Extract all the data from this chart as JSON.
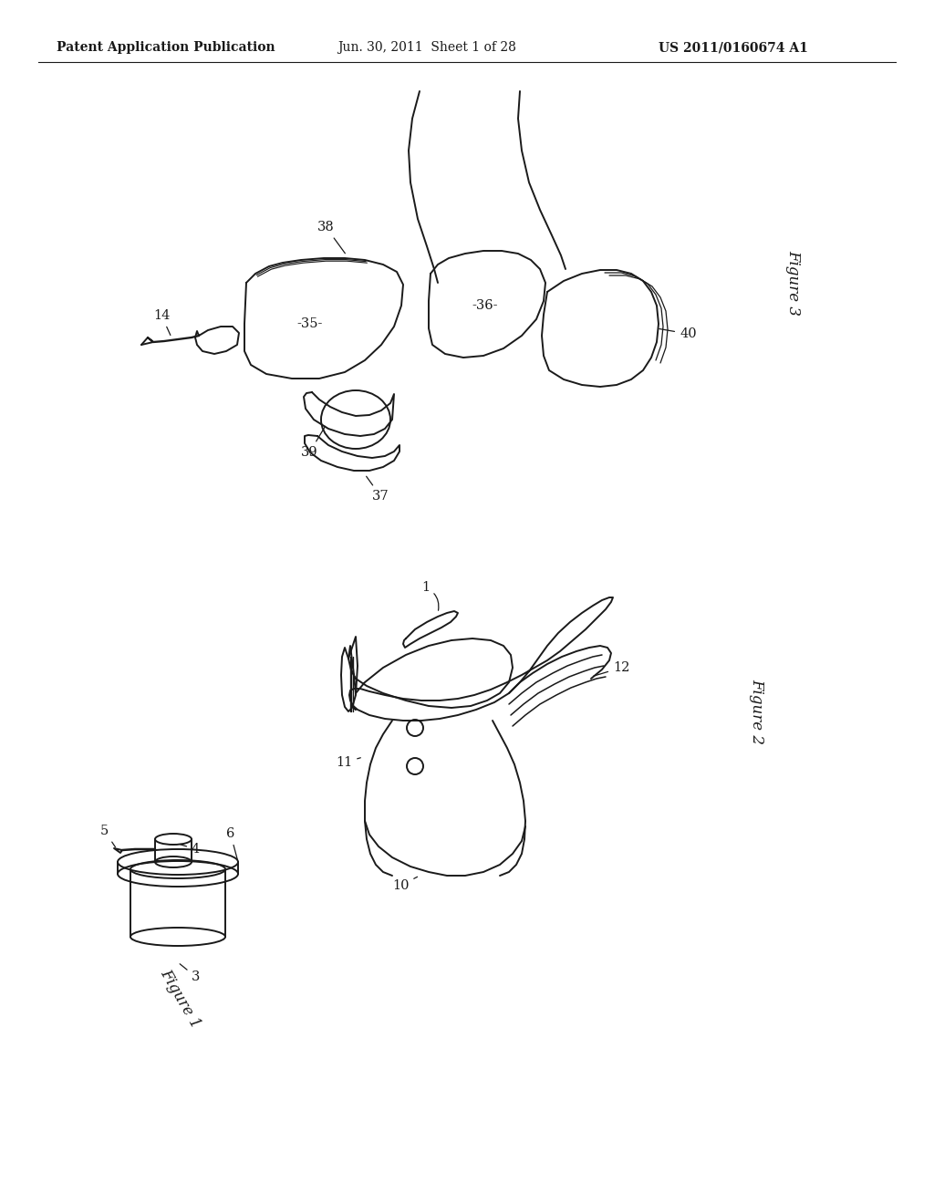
{
  "background_color": "#ffffff",
  "header_left": "Patent Application Publication",
  "header_center": "Jun. 30, 2011  Sheet 1 of 28",
  "header_right": "US 2011/0160674 A1",
  "line_color": "#1a1a1a",
  "line_width": 1.4,
  "annotation_fontsize": 10.5,
  "fig_label_fontsize": 12
}
